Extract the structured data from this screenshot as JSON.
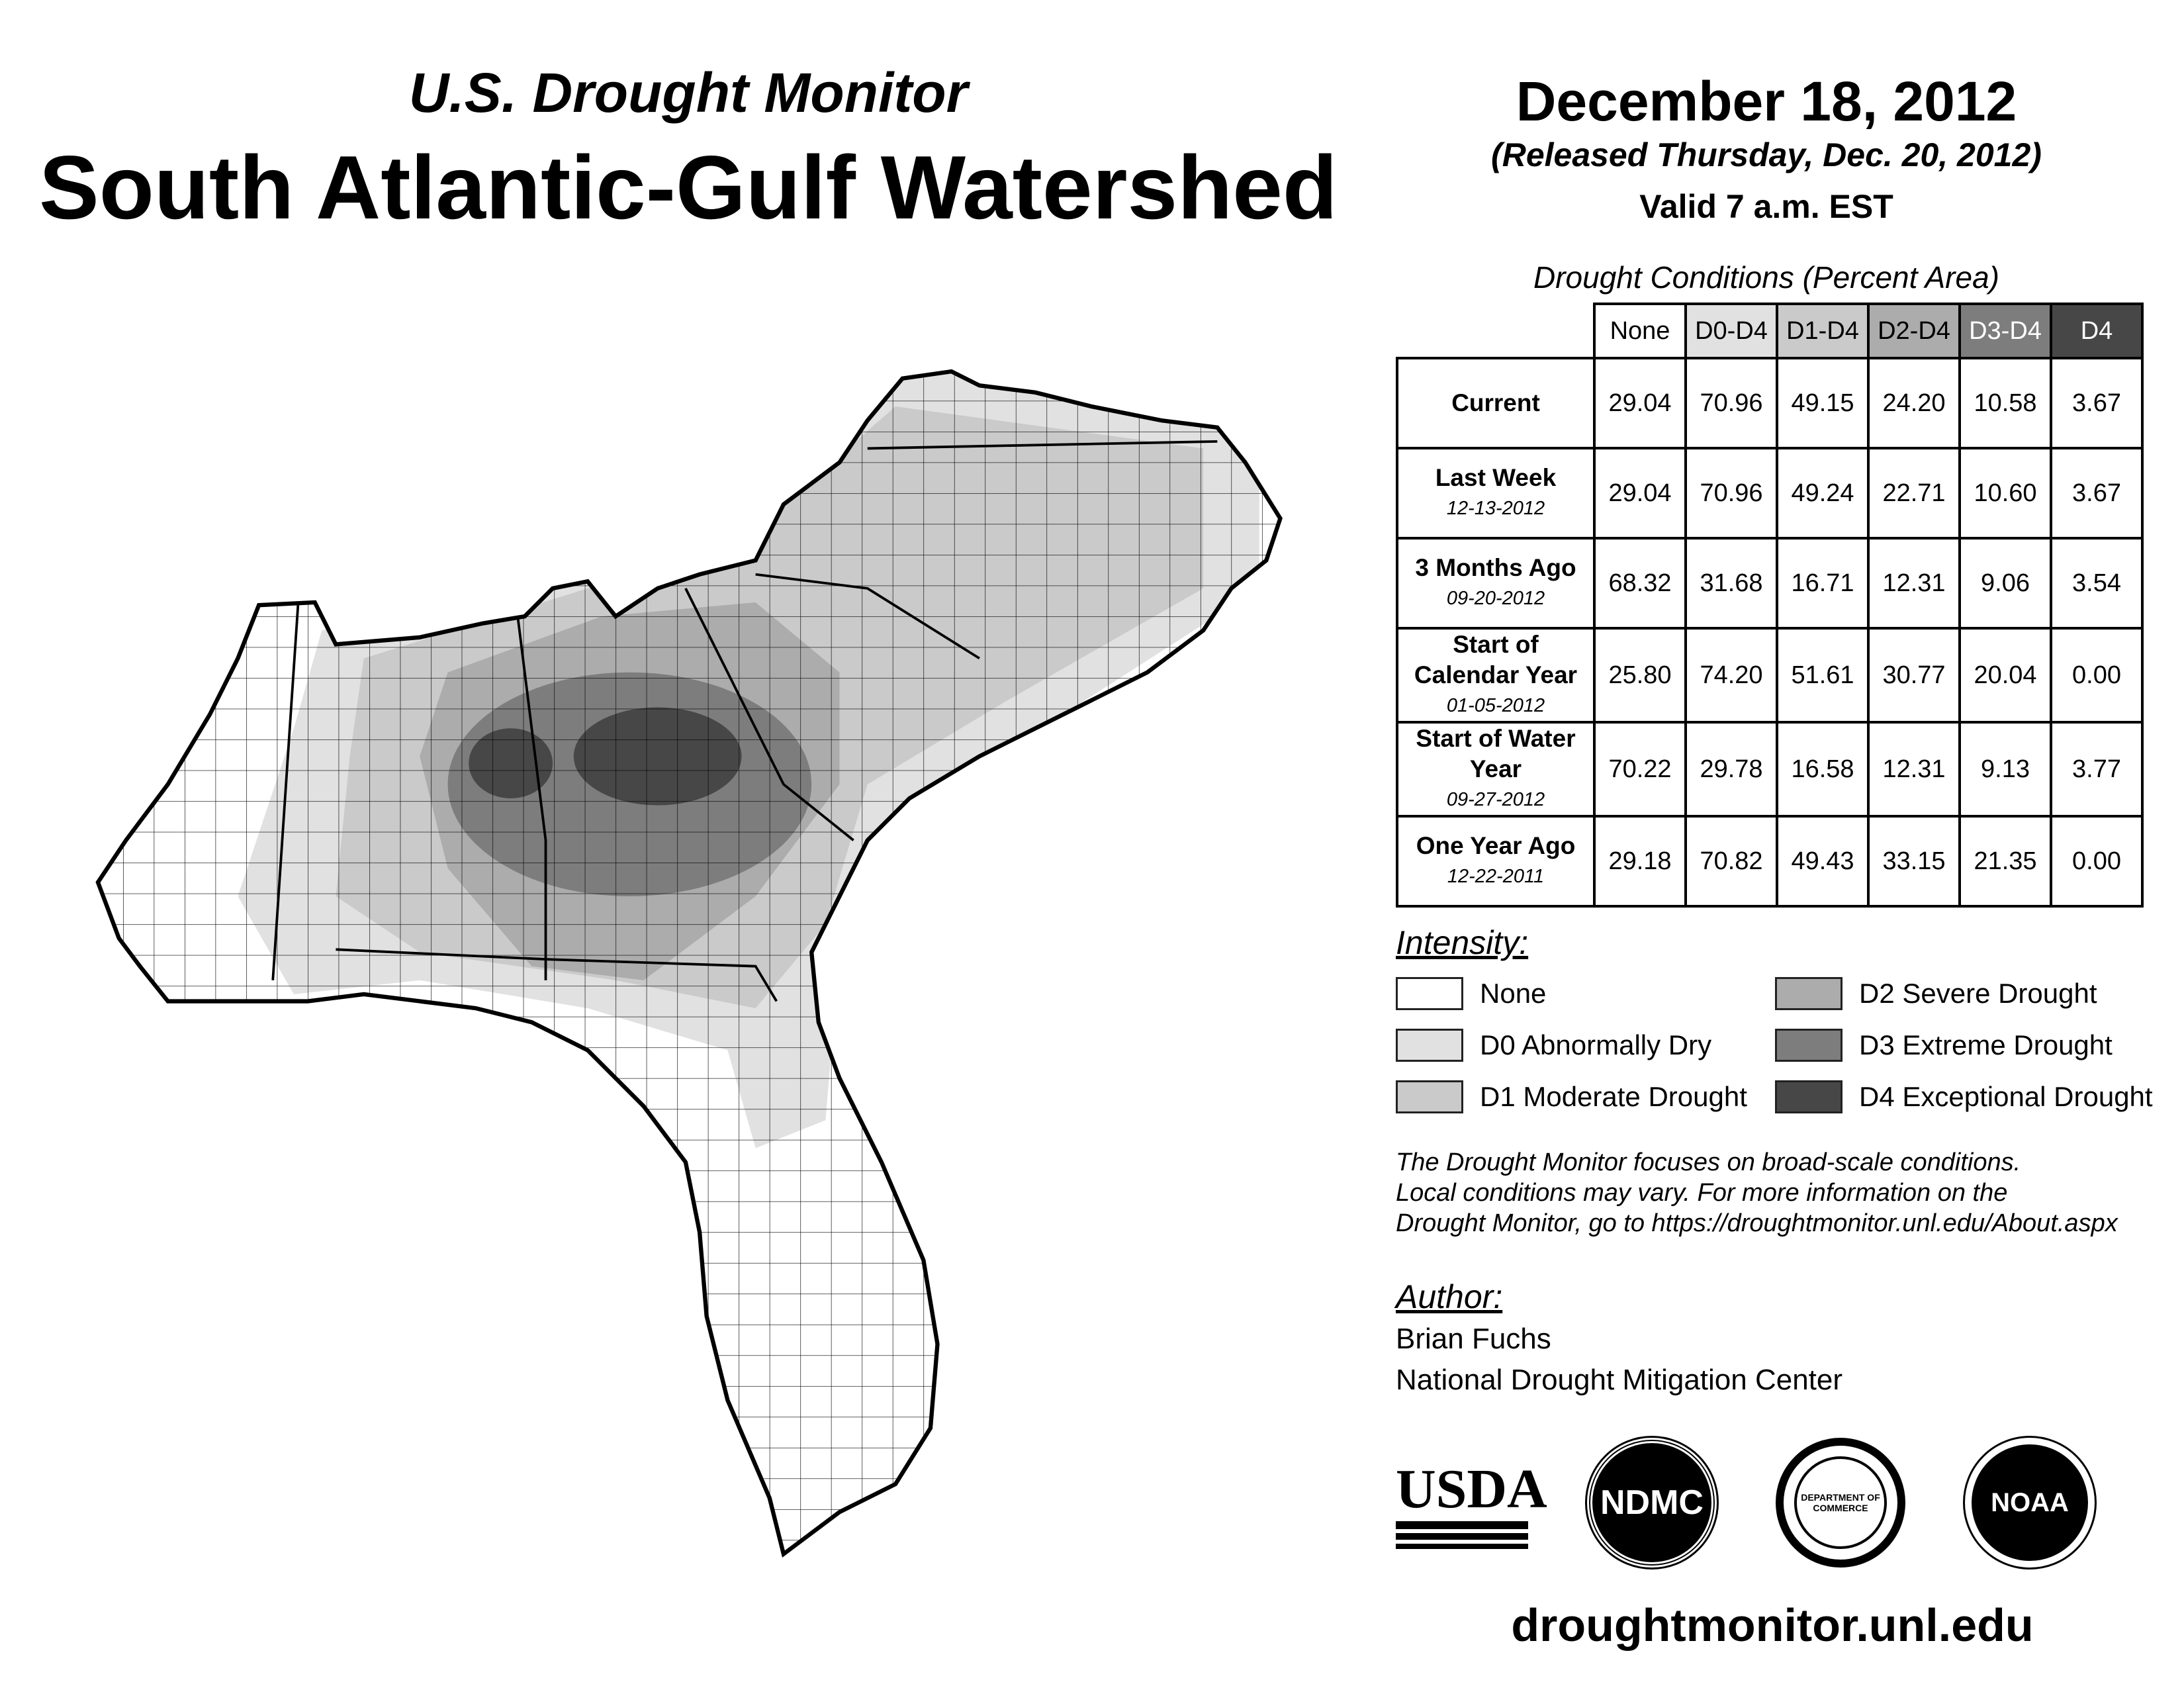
{
  "header": {
    "subtitle": "U.S. Drought Monitor",
    "title": "South Atlantic-Gulf Watershed",
    "date": "December 18, 2012",
    "released": "(Released Thursday, Dec. 20, 2012)",
    "valid": "Valid 7 a.m. EST"
  },
  "table": {
    "caption": "Drought Conditions (Percent Area)",
    "columns": [
      "None",
      "D0-D4",
      "D1-D4",
      "D2-D4",
      "D3-D4",
      "D4"
    ],
    "column_colors": [
      "#ffffff",
      "#e1e1e1",
      "#cacaca",
      "#acacac",
      "#7d7d7d",
      "#474747"
    ],
    "rows": [
      {
        "label": "Current",
        "date": "",
        "values": [
          "29.04",
          "70.96",
          "49.15",
          "24.20",
          "10.58",
          "3.67"
        ]
      },
      {
        "label": "Last Week",
        "date": "12-13-2012",
        "values": [
          "29.04",
          "70.96",
          "49.24",
          "22.71",
          "10.60",
          "3.67"
        ]
      },
      {
        "label": "3 Months Ago",
        "date": "09-20-2012",
        "values": [
          "68.32",
          "31.68",
          "16.71",
          "12.31",
          "9.06",
          "3.54"
        ]
      },
      {
        "label": "Start of Calendar Year",
        "date": "01-05-2012",
        "values": [
          "25.80",
          "74.20",
          "51.61",
          "30.77",
          "20.04",
          "0.00"
        ]
      },
      {
        "label": "Start of Water Year",
        "date": "09-27-2012",
        "values": [
          "70.22",
          "29.78",
          "16.58",
          "12.31",
          "9.13",
          "3.77"
        ]
      },
      {
        "label": "One Year Ago",
        "date": "12-22-2011",
        "values": [
          "29.18",
          "70.82",
          "49.43",
          "33.15",
          "21.35",
          "0.00"
        ]
      }
    ]
  },
  "legend": {
    "title": "Intensity:",
    "items": [
      {
        "label": "None",
        "color": "#ffffff"
      },
      {
        "label": "D0 Abnormally Dry",
        "color": "#e1e1e1"
      },
      {
        "label": "D1 Moderate Drought",
        "color": "#cacaca"
      },
      {
        "label": "D2 Severe Drought",
        "color": "#acacac"
      },
      {
        "label": "D3 Extreme Drought",
        "color": "#7d7d7d"
      },
      {
        "label": "D4 Exceptional Drought",
        "color": "#474747"
      }
    ]
  },
  "note": [
    "The Drought Monitor focuses on broad-scale conditions.",
    "Local conditions may vary. For more information on the",
    "Drought Monitor, go to https://droughtmonitor.unl.edu/About.aspx"
  ],
  "author": {
    "title": "Author:",
    "name": "Brian Fuchs",
    "org": "National Drought Mitigation Center"
  },
  "logos": {
    "usda": "USDA",
    "ndmc": "NDMC",
    "doc": "DEPARTMENT OF COMMERCE",
    "noaa": "NOAA"
  },
  "footer": {
    "url": "droughtmonitor.unl.edu"
  }
}
